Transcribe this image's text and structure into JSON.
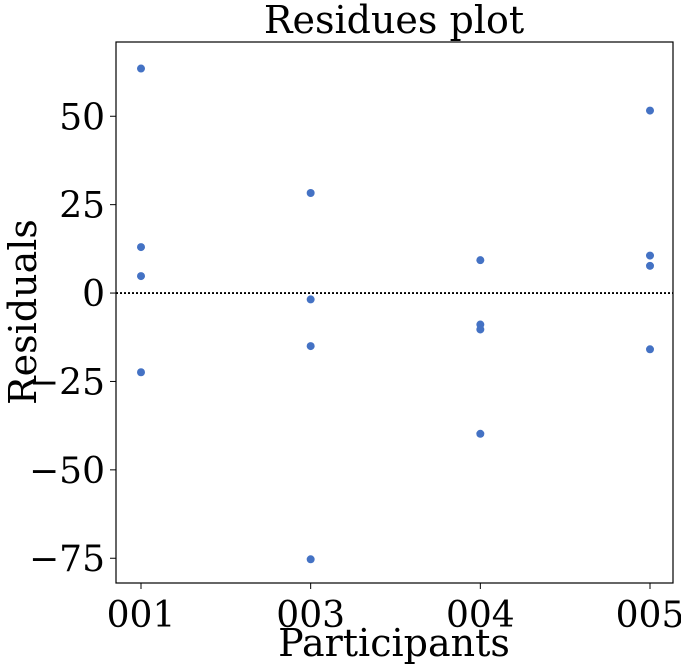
{
  "chart_data": {
    "type": "scatter",
    "title": "Residues plot",
    "xlabel": "Participants",
    "ylabel": "Residuals",
    "categories": [
      "001",
      "003",
      "004",
      "005"
    ],
    "ylim": [
      -82,
      71
    ],
    "yticks": [
      50,
      25,
      0,
      -25,
      -50,
      -75
    ],
    "ytick_labels": [
      "50",
      "25",
      "0",
      "−25",
      "−50",
      "−75"
    ],
    "reference_line": {
      "y": 0,
      "style": "dotted"
    },
    "grid": false,
    "points": [
      {
        "category": "001",
        "value": 63.5
      },
      {
        "category": "001",
        "value": 13.0
      },
      {
        "category": "001",
        "value": 4.8
      },
      {
        "category": "001",
        "value": -22.4
      },
      {
        "category": "003",
        "value": 28.3
      },
      {
        "category": "003",
        "value": -1.8
      },
      {
        "category": "003",
        "value": -15.0
      },
      {
        "category": "003",
        "value": -75.3
      },
      {
        "category": "004",
        "value": 9.3
      },
      {
        "category": "004",
        "value": -8.9
      },
      {
        "category": "004",
        "value": -10.3
      },
      {
        "category": "004",
        "value": -39.8
      },
      {
        "category": "005",
        "value": 51.6
      },
      {
        "category": "005",
        "value": 10.6
      },
      {
        "category": "005",
        "value": 7.7
      },
      {
        "category": "005",
        "value": -15.9
      }
    ],
    "colors": {
      "point": "#4472c4",
      "axis": "#000000",
      "reference_line": "#000000"
    }
  }
}
